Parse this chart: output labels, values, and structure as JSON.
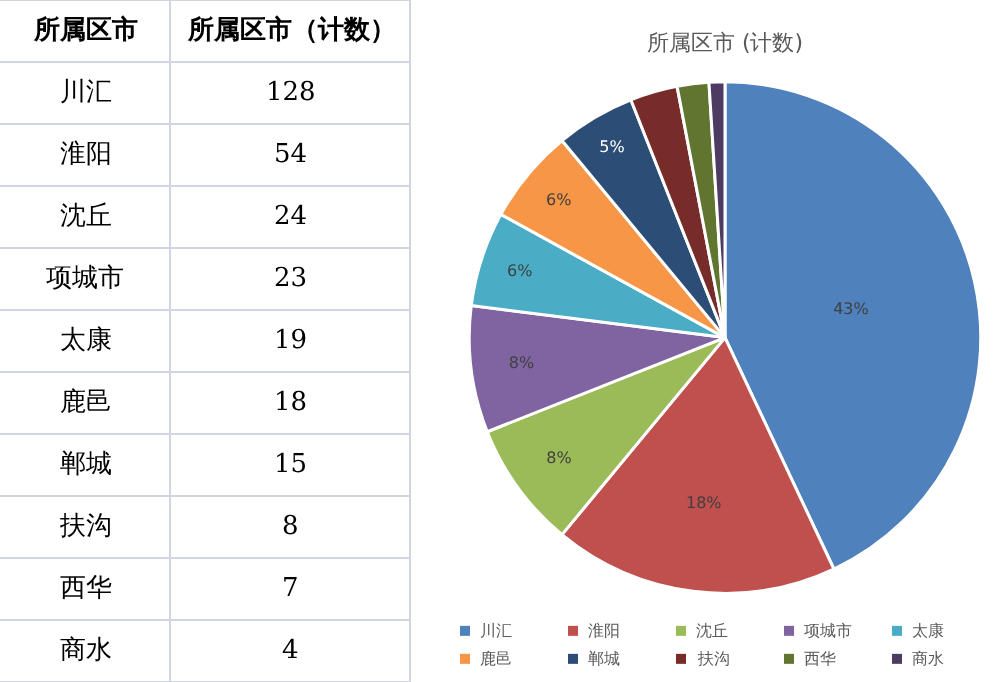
{
  "chart_data": [
    {
      "type": "other",
      "categories": [
        "川汇",
        "淮阳",
        "沈丘",
        "项城市",
        "太康",
        "鹿邑",
        "郸城",
        "扶沟",
        "西华",
        "商水"
      ],
      "values": [
        128,
        54,
        24,
        23,
        19,
        18,
        15,
        8,
        7,
        4
      ],
      "data_labels": true,
      "annotations": [
        "所属区市",
        "所属区市（计数）"
      ]
    },
    {
      "type": "pie",
      "title": "所属区市 (计数)",
      "categories": [
        "川汇",
        "淮阳",
        "沈丘",
        "项城市",
        "太康",
        "鹿邑",
        "郸城",
        "扶沟",
        "西华",
        "商水"
      ],
      "values": [
        43,
        18,
        8,
        8,
        6,
        6,
        5,
        3,
        2,
        1
      ],
      "colors": [
        "#4f81bd",
        "#c0504d",
        "#9bbb59",
        "#8064a2",
        "#4bacc6",
        "#f79646",
        "#2c4d75",
        "#772c2a",
        "#5f7530",
        "#4d3b62"
      ],
      "value_labels": [
        "43%",
        "18%",
        "8%",
        "8%",
        "6%",
        "6%",
        "5%",
        null,
        null,
        null
      ],
      "legend": "bottom"
    }
  ]
}
